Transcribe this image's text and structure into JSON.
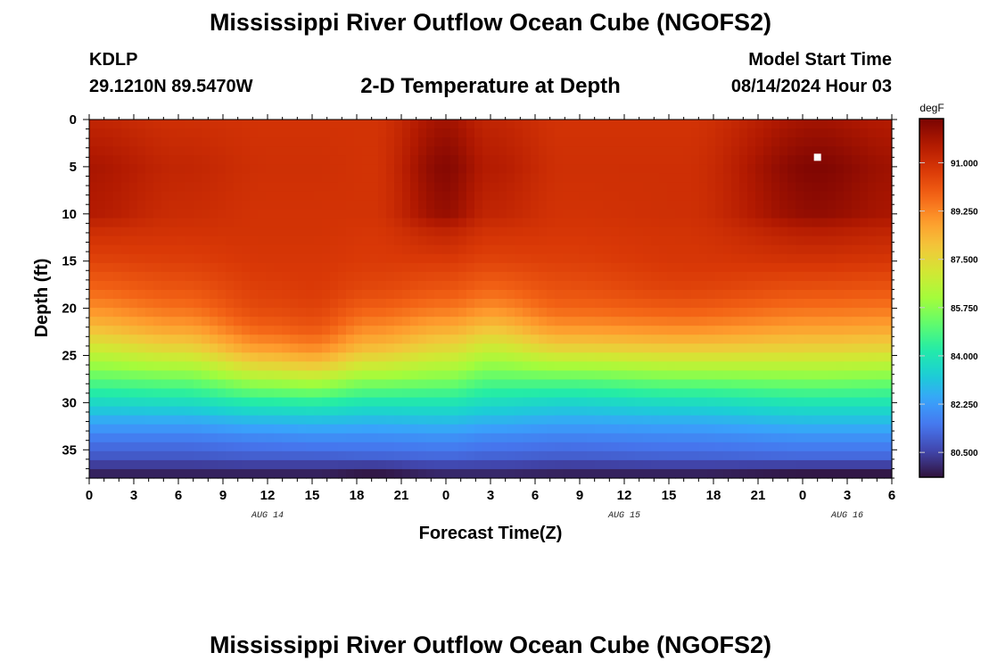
{
  "header": {
    "title": "Mississippi River Outflow Ocean Cube (NGOFS2)",
    "station_id": "KDLP",
    "coordinates": "29.1210N  89.5470W",
    "subtitle": "2-D Temperature at Depth",
    "model_start_label": "Model Start Time",
    "model_start_value": "08/14/2024 Hour 03"
  },
  "footer": {
    "title": "Mississippi River Outflow Ocean Cube (NGOFS2)"
  },
  "chart_data": {
    "type": "heatmap",
    "title": "2-D Temperature at Depth",
    "xlabel": "Forecast Time(Z)",
    "ylabel": "Depth (ft)",
    "x_tick_labels": [
      "0",
      "3",
      "6",
      "9",
      "12",
      "15",
      "18",
      "21",
      "0",
      "3",
      "6",
      "9",
      "12",
      "15",
      "18",
      "21",
      "0",
      "3",
      "6"
    ],
    "x_range_hours": [
      0,
      54
    ],
    "date_labels": [
      {
        "label": "AUG 14",
        "at_hour": 12
      },
      {
        "label": "AUG 15",
        "at_hour": 36
      },
      {
        "label": "AUG 16",
        "at_hour": 51
      }
    ],
    "y_ticks": [
      0,
      5,
      10,
      15,
      20,
      25,
      30,
      35
    ],
    "y_range": [
      0,
      38
    ],
    "y_inverted": true,
    "colorbar": {
      "unit": "degF",
      "ticks": [
        "91.000",
        "89.250",
        "87.500",
        "85.750",
        "84.000",
        "82.250",
        "80.500"
      ],
      "range": [
        79.6,
        92.6
      ],
      "colormap": [
        "#30123b",
        "#4145ab",
        "#4675ed",
        "#39a2fc",
        "#1bcfd4",
        "#24eca6",
        "#61fc6c",
        "#a4fc3b",
        "#d1e834",
        "#f3c63a",
        "#fe9b2d",
        "#f36315",
        "#d93806",
        "#b11901",
        "#7a0402"
      ]
    },
    "marker": {
      "hour": 49,
      "depth": 4,
      "color": "#ffffff"
    },
    "columns": [
      {
        "hour": 0,
        "depths": [
          0,
          5,
          10,
          12,
          15,
          18,
          20,
          22,
          24,
          26,
          28,
          30,
          32,
          34,
          36,
          37.3,
          38
        ],
        "values": [
          91.3,
          91.8,
          91.6,
          91.0,
          90.5,
          89.8,
          89.1,
          88.2,
          87.1,
          86.0,
          84.8,
          83.6,
          82.5,
          81.5,
          80.8,
          79.9,
          79.9
        ]
      },
      {
        "hour": 6,
        "depths": [
          0,
          5,
          10,
          12,
          15,
          18,
          20,
          22,
          24,
          26,
          28,
          30,
          32,
          34,
          36,
          37.3,
          38
        ],
        "values": [
          91.0,
          91.3,
          91.1,
          90.9,
          90.6,
          90.1,
          89.6,
          88.8,
          87.7,
          86.4,
          85.0,
          83.7,
          82.5,
          81.5,
          80.8,
          79.9,
          79.9
        ]
      },
      {
        "hour": 12,
        "depths": [
          0,
          5,
          10,
          12,
          15,
          18,
          20,
          22,
          24,
          26,
          28,
          30,
          32,
          34,
          36,
          37.3,
          38
        ],
        "values": [
          90.9,
          91.0,
          90.9,
          90.9,
          90.8,
          90.6,
          90.4,
          89.9,
          89.0,
          87.6,
          85.9,
          84.2,
          82.8,
          81.7,
          80.9,
          79.9,
          79.9
        ]
      },
      {
        "hour": 15,
        "depths": [
          0,
          5,
          10,
          12,
          15,
          18,
          20,
          22,
          24,
          26,
          28,
          30,
          32,
          34,
          36,
          37.3,
          38
        ],
        "values": [
          90.9,
          91.0,
          90.9,
          90.9,
          90.8,
          90.7,
          90.5,
          90.1,
          89.3,
          87.9,
          86.1,
          84.3,
          82.9,
          81.8,
          80.9,
          79.9,
          79.9
        ]
      },
      {
        "hour": 19,
        "depths": [
          0,
          5,
          10,
          12,
          15,
          18,
          20,
          22,
          24,
          26,
          28,
          30,
          32,
          34,
          36,
          37.3,
          38
        ],
        "values": [
          90.9,
          90.9,
          90.9,
          90.8,
          90.7,
          90.4,
          89.9,
          89.2,
          88.3,
          87.0,
          85.5,
          84.0,
          82.8,
          81.8,
          81.0,
          79.7,
          79.7
        ]
      },
      {
        "hour": 24,
        "depths": [
          0,
          5,
          10,
          12,
          15,
          18,
          20,
          22,
          24,
          26,
          28,
          30,
          32,
          34,
          36,
          37.3,
          38
        ],
        "values": [
          91.9,
          92.4,
          92.1,
          91.3,
          90.7,
          90.1,
          89.5,
          88.6,
          87.6,
          86.5,
          85.3,
          84.0,
          82.9,
          81.9,
          81.1,
          80.0,
          80.0
        ]
      },
      {
        "hour": 27,
        "depths": [
          0,
          5,
          10,
          12,
          15,
          18,
          20,
          22,
          24,
          26,
          28,
          30,
          32,
          34,
          36,
          37.3,
          38
        ],
        "values": [
          91.3,
          91.6,
          91.3,
          90.9,
          90.5,
          89.8,
          89.1,
          88.1,
          87.0,
          85.9,
          84.8,
          83.7,
          82.7,
          81.7,
          81.0,
          80.0,
          80.0
        ]
      },
      {
        "hour": 32,
        "depths": [
          0,
          5,
          10,
          12,
          15,
          18,
          20,
          22,
          24,
          26,
          28,
          30,
          32,
          34,
          36,
          37.3,
          38
        ],
        "values": [
          90.9,
          91.0,
          90.9,
          90.8,
          90.6,
          90.2,
          89.8,
          89.0,
          87.8,
          86.3,
          84.8,
          83.5,
          82.5,
          81.6,
          80.9,
          79.9,
          79.9
        ]
      },
      {
        "hour": 40,
        "depths": [
          0,
          5,
          10,
          12,
          15,
          18,
          20,
          22,
          24,
          26,
          28,
          30,
          32,
          34,
          36,
          37.3,
          38
        ],
        "values": [
          90.9,
          91.0,
          91.0,
          90.9,
          90.8,
          90.5,
          90.0,
          89.2,
          88.0,
          86.6,
          85.1,
          83.7,
          82.6,
          81.7,
          81.0,
          79.9,
          79.9
        ]
      },
      {
        "hour": 49,
        "depths": [
          0,
          5,
          10,
          12,
          15,
          18,
          20,
          22,
          24,
          26,
          28,
          30,
          32,
          34,
          36,
          37.3,
          38
        ],
        "values": [
          91.9,
          92.5,
          92.2,
          91.5,
          90.9,
          90.2,
          89.6,
          88.8,
          87.8,
          86.6,
          85.3,
          84.0,
          82.9,
          81.9,
          81.1,
          79.7,
          79.7
        ]
      },
      {
        "hour": 54,
        "depths": [
          0,
          5,
          10,
          12,
          15,
          18,
          20,
          22,
          24,
          26,
          28,
          30,
          32,
          34,
          36,
          37.3,
          38
        ],
        "values": [
          91.6,
          92.0,
          91.8,
          91.3,
          90.8,
          90.1,
          89.5,
          88.7,
          87.7,
          86.5,
          85.2,
          84.0,
          82.9,
          81.9,
          81.1,
          79.7,
          79.7
        ]
      }
    ]
  }
}
